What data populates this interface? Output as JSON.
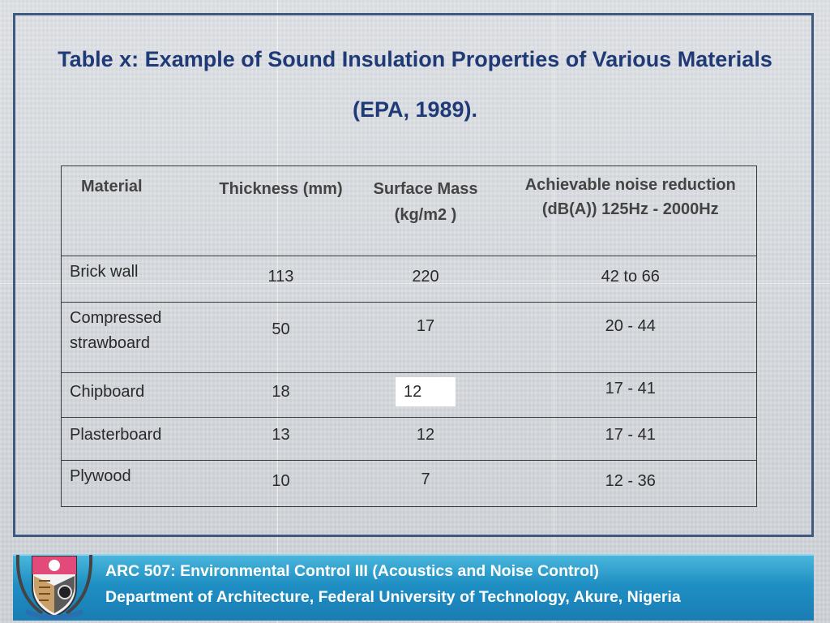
{
  "slide": {
    "title": "Table x: Example of Sound Insulation Properties of Various Materials (EPA, 1989)."
  },
  "table": {
    "headers": [
      "Material",
      "Thickness (mm)",
      "Surface Mass (kg/m2 )",
      "Achievable noise reduction (dB(A)) 125Hz - 2000Hz"
    ],
    "rows": [
      [
        "Brick wall",
        "113",
        "220",
        "42 to 66"
      ],
      [
        "Compressed strawboard",
        "50",
        "17",
        "20 - 44"
      ],
      [
        "Chipboard",
        "18",
        "12",
        "17 - 41"
      ],
      [
        "Plasterboard",
        "13",
        "12",
        "17 - 41"
      ],
      [
        "Plywood",
        "10",
        "7",
        "12 - 36"
      ]
    ]
  },
  "footer": {
    "line1": "ARC 507: Environmental Control III (Acoustics and Noise Control)",
    "line2": "Department of Architecture, Federal University of Technology, Akure, Nigeria"
  },
  "colors": {
    "title": "#1f3a76",
    "frame": "#3f5a7e",
    "footer_band": "#2a9dd0"
  },
  "icons": {
    "logo": "university-crest-icon"
  }
}
